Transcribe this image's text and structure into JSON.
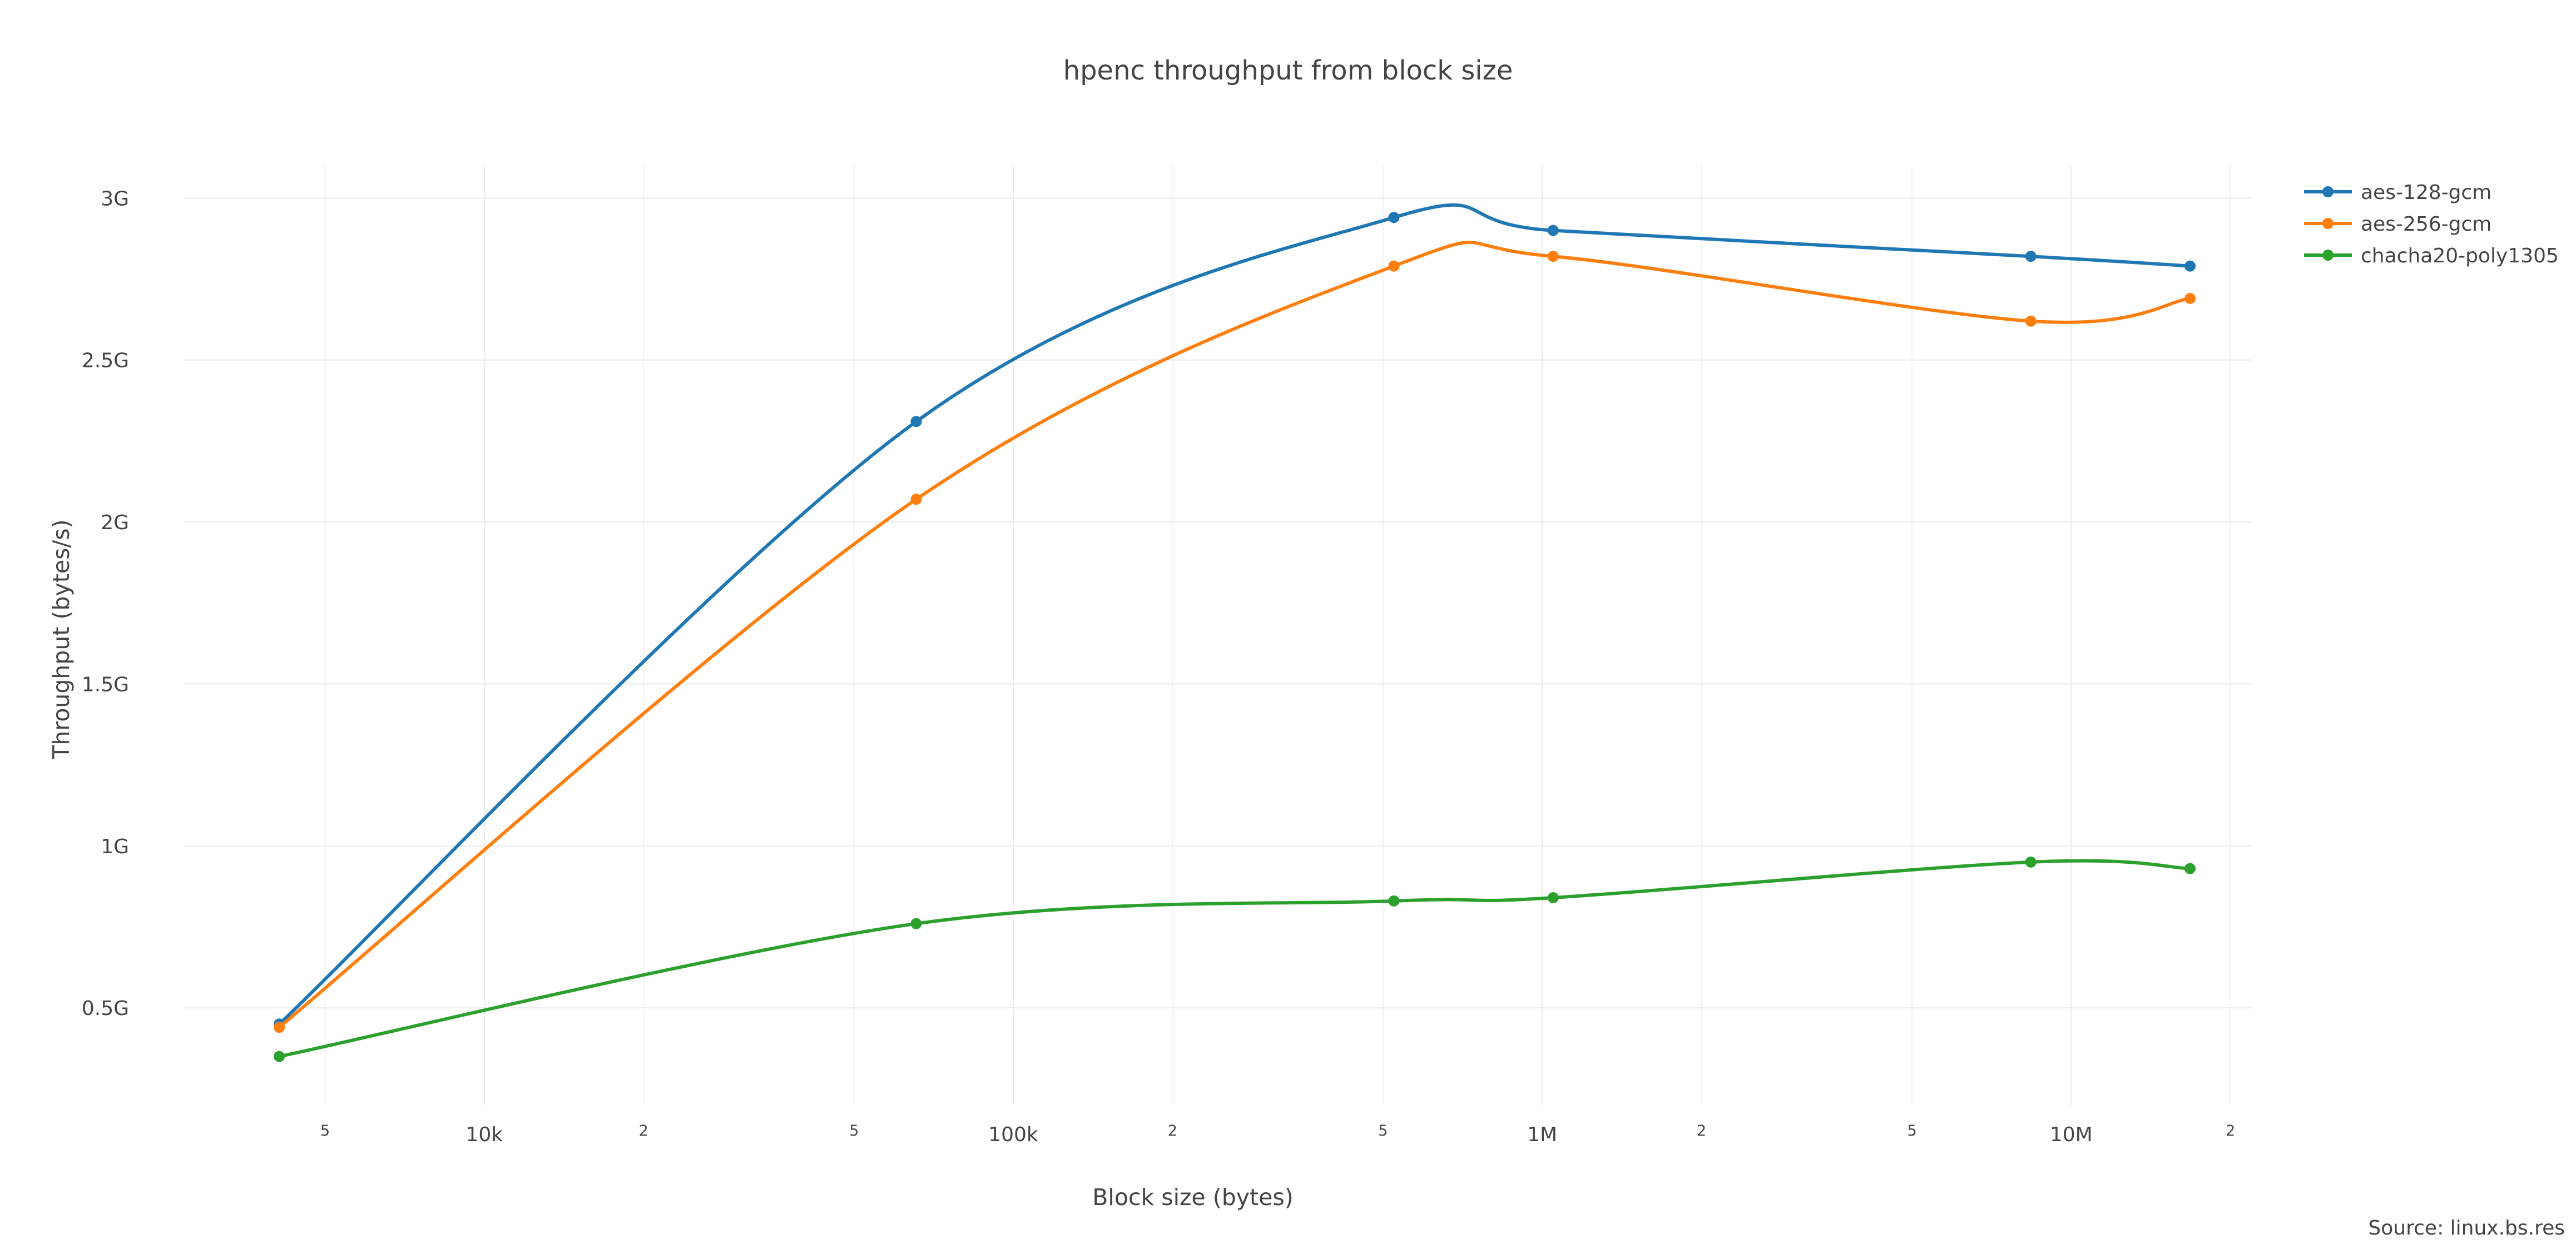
{
  "chart_data": {
    "type": "line",
    "title": "hpenc throughput from block size",
    "xlabel": "Block size (bytes)",
    "ylabel": "Throughput (bytes/s)",
    "x_scale": "log",
    "xlim": [
      2700,
      22000000
    ],
    "ylim": [
      200000000,
      3100000000
    ],
    "x_major_ticks": [
      {
        "value": 10000,
        "label": "10k"
      },
      {
        "value": 100000,
        "label": "100k"
      },
      {
        "value": 1000000,
        "label": "1M"
      },
      {
        "value": 10000000,
        "label": "10M"
      }
    ],
    "x_minor_ticks": [
      {
        "value": 5000,
        "label": "5"
      },
      {
        "value": 20000,
        "label": "2"
      },
      {
        "value": 50000,
        "label": "5"
      },
      {
        "value": 200000,
        "label": "2"
      },
      {
        "value": 500000,
        "label": "5"
      },
      {
        "value": 2000000,
        "label": "2"
      },
      {
        "value": 5000000,
        "label": "5"
      },
      {
        "value": 20000000,
        "label": "2"
      }
    ],
    "y_ticks": [
      {
        "value": 500000000,
        "label": "0.5G"
      },
      {
        "value": 1000000000,
        "label": "1G"
      },
      {
        "value": 1500000000,
        "label": "1.5G"
      },
      {
        "value": 2000000000,
        "label": "2G"
      },
      {
        "value": 2500000000,
        "label": "2.5G"
      },
      {
        "value": 3000000000,
        "label": "3G"
      }
    ],
    "x": [
      4096,
      65536,
      524288,
      1048576,
      8388608,
      16777216
    ],
    "series": [
      {
        "name": "aes-128-gcm",
        "color": "#1f77b4",
        "values": [
          450000000,
          2310000000,
          2940000000,
          2900000000,
          2820000000,
          2790000000
        ]
      },
      {
        "name": "aes-256-gcm",
        "color": "#ff7f0e",
        "values": [
          440000000,
          2070000000,
          2790000000,
          2820000000,
          2620000000,
          2690000000
        ]
      },
      {
        "name": "chacha20-poly1305",
        "color": "#2ca02c",
        "values": [
          350000000,
          760000000,
          830000000,
          840000000,
          950000000,
          930000000
        ]
      }
    ],
    "grid": true,
    "legend_position": "top-right",
    "annotation": "Source: linux.bs.res"
  }
}
